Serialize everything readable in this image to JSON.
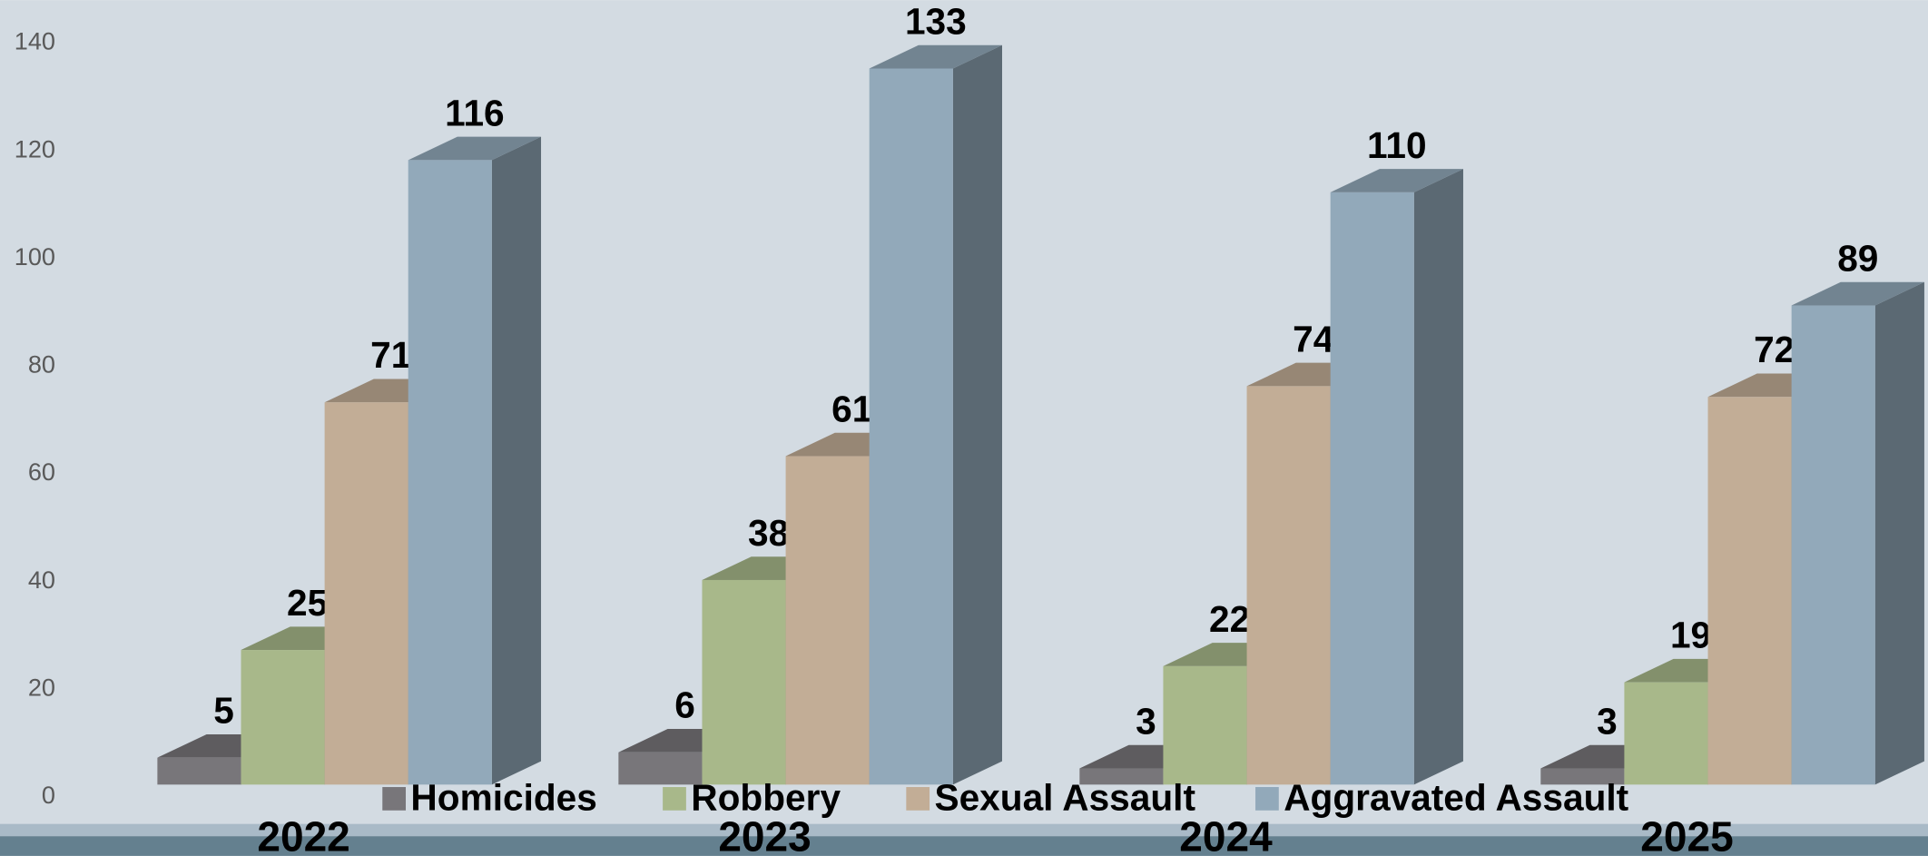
{
  "chart_data": {
    "type": "bar3d",
    "categories": [
      "2022",
      "2023",
      "2024",
      "2025"
    ],
    "series": [
      {
        "name": "Homicides",
        "color": "#78767a",
        "values": [
          5,
          6,
          3,
          3
        ]
      },
      {
        "name": "Robbery",
        "color": "#a8b88a",
        "values": [
          25,
          38,
          22,
          19
        ]
      },
      {
        "name": "Sexual Assault",
        "color": "#c2ad96",
        "values": [
          71,
          61,
          74,
          72
        ]
      },
      {
        "name": "Aggravated Assault",
        "color": "#92a9ba",
        "values": [
          116,
          133,
          110,
          89
        ]
      }
    ],
    "ylim": [
      0,
      140
    ],
    "yticks": [
      0,
      20,
      40,
      60,
      80,
      100,
      120,
      140
    ],
    "legend": "bottom"
  }
}
